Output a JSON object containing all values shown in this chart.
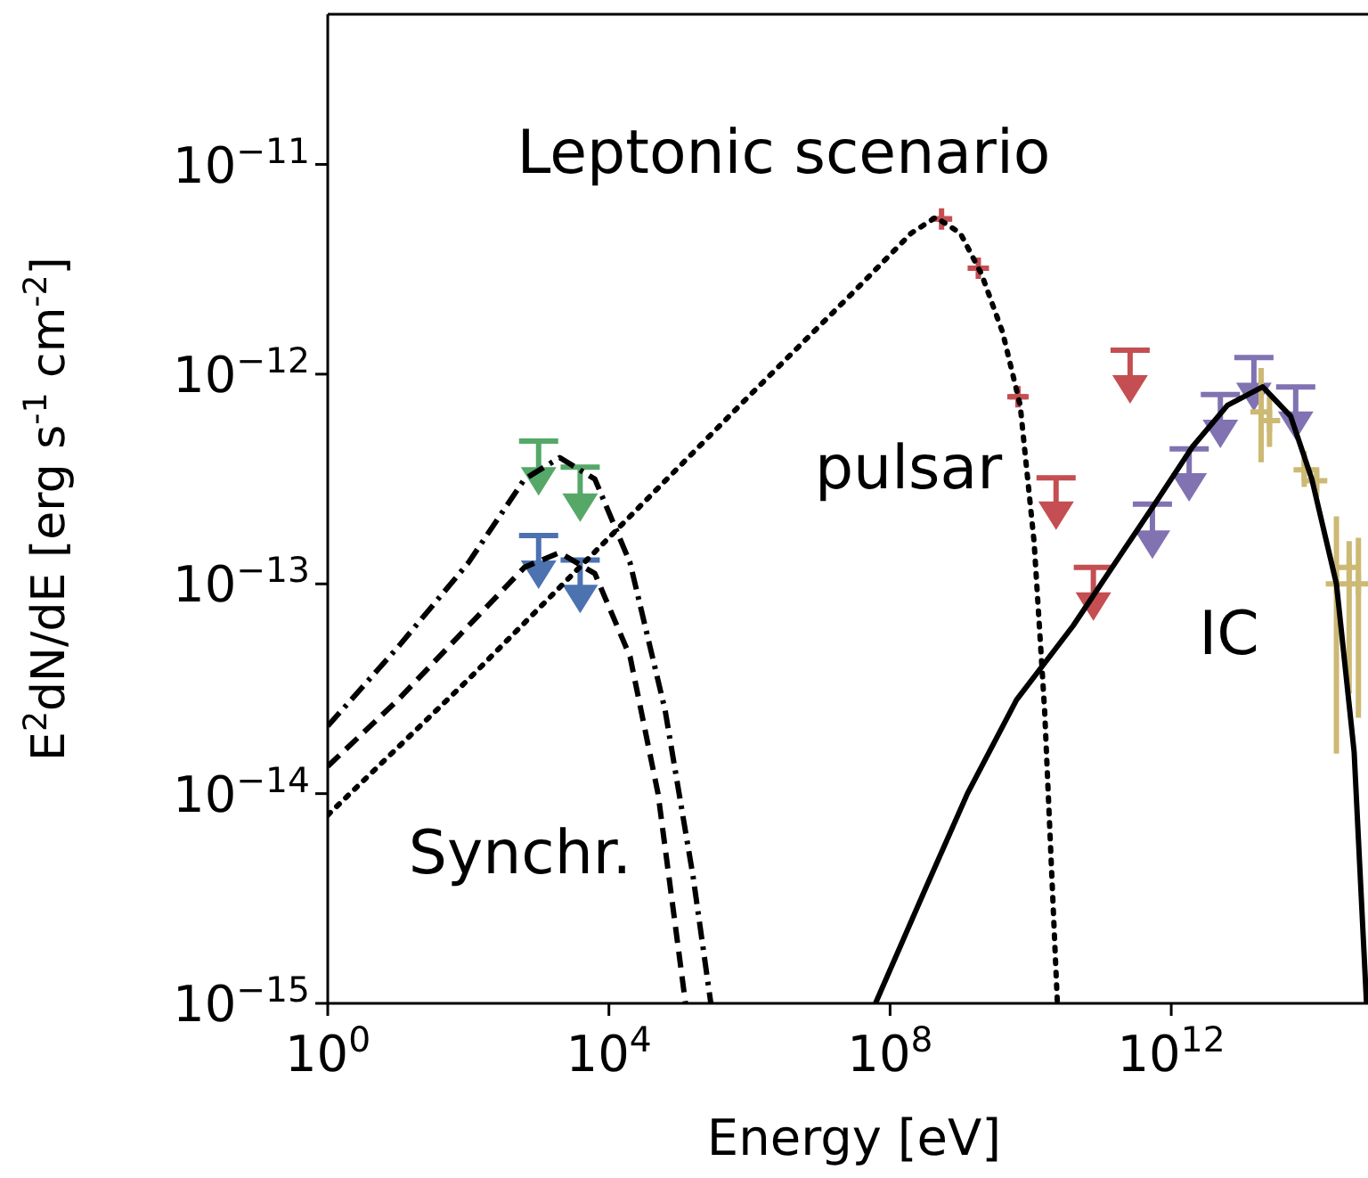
{
  "chart_data": {
    "type": "line",
    "title": "Leptonic scenario",
    "xlabel": "Energy [eV]",
    "ylabel": "E$^{2}$dN/dE [erg s$^{-1}$ cm$^{-2}$]",
    "log": "xy",
    "grid": false,
    "xlim": [
      1,
      630000000000000.0
    ],
    "ylim": [
      1e-15,
      5.2e-11
    ],
    "xticks": [
      {
        "value": 1,
        "label": "10$^{0}$"
      },
      {
        "value": 10000,
        "label": "10$^{4}$"
      },
      {
        "value": 100000000,
        "label": "10$^{8}$"
      },
      {
        "value": 1000000000000,
        "label": "10$^{12}$"
      }
    ],
    "yticks": [
      {
        "value": 1e-15,
        "label": "10$^{−15}$"
      },
      {
        "value": 1e-14,
        "label": "10$^{−14}$"
      },
      {
        "value": 1e-13,
        "label": "10$^{−13}$"
      },
      {
        "value": 1e-12,
        "label": "10$^{−12}$"
      },
      {
        "value": 1e-11,
        "label": "10$^{−11}$"
      }
    ],
    "series": [
      {
        "line_style": "dashdot",
        "color": "#000000",
        "x": [
          1,
          10,
          100,
          631,
          1995,
          6310,
          20000,
          63000,
          158000,
          282000
        ],
        "values": [
          2.1e-14,
          5e-14,
          1.26e-13,
          3.16e-13,
          4e-13,
          3.16e-13,
          1.26e-13,
          2.5e-14,
          4e-15,
          1e-15
        ]
      },
      {
        "line_style": "dashed",
        "color": "#000000",
        "x": [
          1,
          10,
          100,
          631,
          1995,
          6310,
          20000,
          50000,
          123000
        ],
        "values": [
          1.35e-14,
          2.8e-14,
          6.3e-14,
          1.2e-13,
          1.41e-13,
          1.12e-13,
          4.5e-14,
          1e-14,
          1e-15
        ]
      },
      {
        "line_style": "dotted",
        "color": "#000000",
        "x": [
          1,
          100,
          10000,
          1000000,
          31600000,
          200000000,
          447000000,
          1000000000,
          2000000000,
          4000000000,
          7100000000,
          11200000000,
          15800000000,
          24000000000
        ],
        "values": [
          7.9e-15,
          3.5e-14,
          1.66e-13,
          7.9e-13,
          2.5e-12,
          4.7e-12,
          5.6e-12,
          4.7e-12,
          3e-12,
          1.58e-12,
          7.1e-13,
          1.58e-13,
          2.5e-14,
          1e-15
        ]
      },
      {
        "line_style": "solid",
        "color": "#000000",
        "x": [
          62000000,
          316000000,
          1260000000,
          6300000000,
          40000000000,
          200000000000,
          630000000000,
          2000000000000.0,
          6300000000000.0,
          20000000000000.0,
          50000000000000.0,
          100000000000000.0,
          224000000000000.0,
          400000000000000.0,
          600000000000000.0
        ],
        "values": [
          1e-15,
          3.5e-15,
          1e-14,
          2.8e-14,
          6.3e-14,
          1.41e-13,
          2.5e-13,
          4.5e-13,
          7.1e-13,
          8.7e-13,
          6.3e-13,
          3.16e-13,
          1e-13,
          1.58e-14,
          1e-15
        ]
      },
      {
        "type": "scatter",
        "marker": "triangle",
        "color": "#55a868",
        "x": [
          1000,
          3900
        ],
        "values": [
          3.2e-13,
          2.4e-13
        ],
        "errors": [
          [
            3.2e-13,
            4.8e-13
          ],
          [
            2.4e-13,
            3.6e-13
          ]
        ]
      },
      {
        "type": "scatter",
        "marker": "triangle",
        "color": "#4c72b0",
        "x": [
          1000,
          3900
        ],
        "values": [
          1.15e-13,
          8.8e-14
        ],
        "errors": [
          [
            1.15e-13,
            1.7e-13
          ],
          [
            8.8e-14,
            1.3e-13
          ]
        ]
      },
      {
        "type": "scatter",
        "marker": "cross",
        "color": "#c44e52",
        "x": [
          540000000,
          1800000000,
          6600000000
        ],
        "values": [
          5.5e-12,
          3.2e-12,
          7.8e-13
        ],
        "xerrors": [
          [
            400000000,
            750000000
          ],
          [
            1300000000,
            2500000000
          ],
          [
            5000000000,
            8800000000
          ]
        ]
      },
      {
        "type": "scatter",
        "marker": "triangle",
        "color": "#c44e52",
        "x": [
          23000000000,
          78000000000,
          260000000000
        ],
        "values": [
          2.2e-13,
          8.1e-14,
          8.8e-13
        ],
        "errors": [
          [
            2.2e-13,
            3.2e-13
          ],
          [
            8.1e-14,
            1.2e-13
          ],
          [
            8.8e-13,
            1.3e-12
          ]
        ]
      },
      {
        "type": "scatter",
        "marker": "triangle",
        "color": "#8172b2",
        "x": [
          540000000000,
          1800000000000.0,
          5000000000000.0,
          15000000000000.0,
          59000000000000.0
        ],
        "values": [
          1.6e-13,
          3e-13,
          5.4e-13,
          8.1e-13,
          5.9e-13
        ],
        "errors": [
          [
            1.6e-13,
            2.4e-13
          ],
          [
            3e-13,
            4.4e-13
          ],
          [
            5.4e-13,
            8e-13
          ],
          [
            8.1e-13,
            1.2e-12
          ],
          [
            5.9e-13,
            8.7e-13
          ]
        ]
      },
      {
        "type": "scatter",
        "marker": "cross",
        "color": "#ccb974",
        "x": [
          19000000000000.0,
          25000000000000.0,
          78000000000000.0,
          117000000000000.0,
          224000000000000.0,
          340000000000000.0,
          460000000000000.0
        ],
        "values": [
          6.6e-13,
          6e-13,
          3.5e-13,
          3.1e-13,
          1e-13,
          1.2e-13,
          1e-13
        ],
        "errors": [
          [
            3.8e-13,
            1.07e-12
          ],
          [
            4.5e-13,
            8e-13
          ],
          [
            2.9e-13,
            4.3e-13
          ],
          [
            2.6e-13,
            3.6e-13
          ],
          [
            1.55e-14,
            2.1e-13
          ],
          [
            3e-14,
            1.6e-13
          ],
          [
            2.3e-14,
            1.66e-13
          ]
        ]
      }
    ],
    "annotations": [
      "pulsar",
      "IC",
      "Synchr."
    ]
  }
}
